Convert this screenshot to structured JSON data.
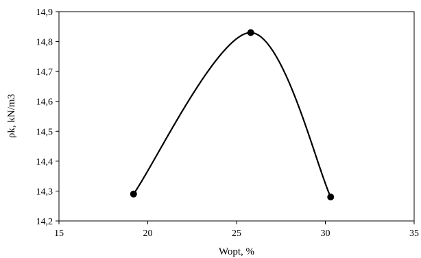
{
  "chart_data": {
    "type": "line",
    "xlabel": "Wopt, %",
    "ylabel": "ρk, kN/m3",
    "xlim": [
      15,
      35
    ],
    "ylim": [
      14.2,
      14.9
    ],
    "grid": false,
    "smooth": true,
    "x_ticks": [
      15,
      20,
      25,
      30,
      35
    ],
    "x_tick_labels": [
      "15",
      "20",
      "25",
      "30",
      "35"
    ],
    "y_ticks": [
      14.2,
      14.3,
      14.4,
      14.5,
      14.6,
      14.7,
      14.8,
      14.9
    ],
    "y_tick_labels": [
      "14,2",
      "14,3",
      "14,4",
      "14,5",
      "14,6",
      "14,7",
      "14,8",
      "14,9"
    ],
    "series": [
      {
        "x": [
          19.2,
          25.8,
          30.3
        ],
        "y": [
          14.29,
          14.83,
          14.28
        ],
        "color": "#000000",
        "marker": "circle"
      }
    ]
  }
}
